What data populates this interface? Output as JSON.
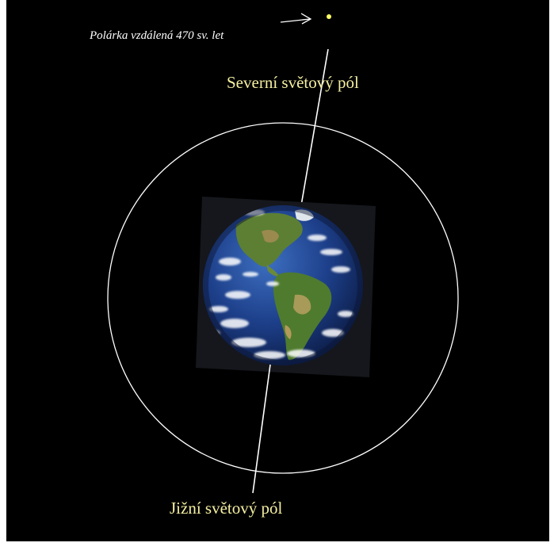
{
  "labels": {
    "polaris": "Polárka vzdálená 470 sv. let",
    "north_pole": "Severní světový pól",
    "south_pole": "Jižní světový pól"
  },
  "colors": {
    "background": "#000000",
    "label_yellow": "#f5f0a0",
    "line": "#ffffff",
    "star": "#ffff66",
    "ocean": "#1d3f8a",
    "land": "#4f7b2e"
  }
}
